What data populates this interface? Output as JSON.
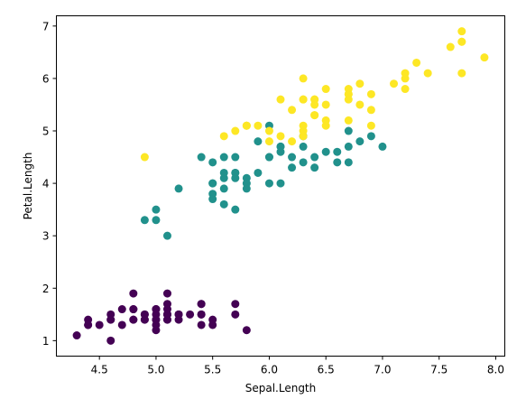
{
  "chart_data": {
    "type": "scatter",
    "title": "",
    "xlabel": "Sepal.Length",
    "ylabel": "Petal.Length",
    "xlim": [
      4.12,
      8.08
    ],
    "ylim": [
      0.705,
      7.195
    ],
    "xticks": [
      4.5,
      5.0,
      5.5,
      6.0,
      6.5,
      7.0,
      7.5,
      8.0
    ],
    "xtick_labels": [
      "4.5",
      "5.0",
      "5.5",
      "6.0",
      "6.5",
      "7.0",
      "7.5",
      "8.0"
    ],
    "yticks": [
      1,
      2,
      3,
      4,
      5,
      6,
      7
    ],
    "ytick_labels": [
      "1",
      "2",
      "3",
      "4",
      "5",
      "6",
      "7"
    ],
    "grid": false,
    "legend": "none",
    "series": [
      {
        "color": "#440154",
        "x": [
          5.1,
          4.9,
          4.7,
          4.6,
          5.0,
          5.4,
          4.6,
          5.0,
          4.4,
          4.9,
          5.4,
          4.8,
          4.8,
          4.3,
          5.8,
          5.7,
          5.4,
          5.1,
          5.7,
          5.1,
          5.4,
          5.1,
          4.6,
          5.1,
          4.8,
          5.0,
          5.0,
          5.2,
          5.2,
          4.7,
          4.8,
          5.4,
          5.2,
          5.5,
          4.9,
          5.0,
          5.5,
          4.9,
          4.4,
          5.1,
          5.0,
          4.5,
          4.4,
          5.0,
          5.1,
          4.8,
          5.1,
          4.6,
          5.3,
          5.0
        ],
        "y": [
          1.4,
          1.4,
          1.3,
          1.5,
          1.4,
          1.7,
          1.4,
          1.5,
          1.4,
          1.5,
          1.5,
          1.6,
          1.4,
          1.1,
          1.2,
          1.5,
          1.3,
          1.4,
          1.7,
          1.5,
          1.7,
          1.5,
          1.0,
          1.7,
          1.9,
          1.6,
          1.6,
          1.5,
          1.4,
          1.6,
          1.6,
          1.5,
          1.5,
          1.4,
          1.5,
          1.2,
          1.3,
          1.4,
          1.3,
          1.5,
          1.3,
          1.3,
          1.3,
          1.6,
          1.9,
          1.4,
          1.6,
          1.4,
          1.5,
          1.4
        ]
      },
      {
        "color": "#21918c",
        "x": [
          7.0,
          6.4,
          6.9,
          5.5,
          6.5,
          5.7,
          6.3,
          4.9,
          6.6,
          5.2,
          5.0,
          5.9,
          6.0,
          6.1,
          5.6,
          6.7,
          5.6,
          5.8,
          6.2,
          5.6,
          5.9,
          6.1,
          6.3,
          6.1,
          6.4,
          6.6,
          6.8,
          6.7,
          6.0,
          5.7,
          5.5,
          5.5,
          5.8,
          6.0,
          5.4,
          6.0,
          6.7,
          6.3,
          5.6,
          5.5,
          5.5,
          6.1,
          5.8,
          5.0,
          5.6,
          5.7,
          5.7,
          6.2,
          5.1,
          5.7
        ],
        "y": [
          4.7,
          4.5,
          4.9,
          4.0,
          4.6,
          4.5,
          4.7,
          3.3,
          4.6,
          3.9,
          3.5,
          4.2,
          4.0,
          4.7,
          3.6,
          4.4,
          4.5,
          4.1,
          4.5,
          3.9,
          4.8,
          4.0,
          4.9,
          4.7,
          4.3,
          4.4,
          4.8,
          5.0,
          4.5,
          3.5,
          3.8,
          3.7,
          3.9,
          5.1,
          4.5,
          4.5,
          4.7,
          4.4,
          4.1,
          4.0,
          4.4,
          4.6,
          4.0,
          3.3,
          4.2,
          4.2,
          4.2,
          4.3,
          3.0,
          4.1
        ]
      },
      {
        "color": "#fde725",
        "x": [
          6.3,
          5.8,
          7.1,
          6.3,
          6.5,
          7.6,
          4.9,
          7.3,
          6.7,
          7.2,
          6.5,
          6.4,
          6.8,
          5.7,
          5.8,
          6.4,
          6.5,
          7.7,
          7.7,
          6.0,
          6.9,
          5.6,
          7.7,
          6.3,
          6.7,
          7.2,
          6.2,
          6.1,
          6.4,
          7.2,
          7.4,
          7.9,
          6.4,
          6.3,
          6.1,
          7.7,
          6.3,
          6.4,
          6.0,
          6.9,
          6.7,
          6.9,
          5.8,
          6.8,
          6.7,
          6.7,
          6.3,
          6.5,
          6.2,
          5.9
        ],
        "y": [
          6.0,
          5.1,
          5.9,
          5.6,
          5.8,
          6.6,
          4.5,
          6.3,
          5.8,
          6.1,
          5.1,
          5.3,
          5.5,
          5.0,
          5.1,
          5.3,
          5.5,
          6.7,
          6.9,
          5.0,
          5.7,
          4.9,
          6.7,
          4.9,
          5.7,
          6.0,
          4.8,
          4.9,
          5.6,
          5.8,
          6.1,
          6.4,
          5.6,
          5.1,
          5.6,
          6.1,
          5.6,
          5.5,
          4.8,
          5.4,
          5.6,
          5.1,
          5.1,
          5.9,
          5.7,
          5.2,
          5.0,
          5.2,
          5.4,
          5.1
        ]
      }
    ]
  }
}
